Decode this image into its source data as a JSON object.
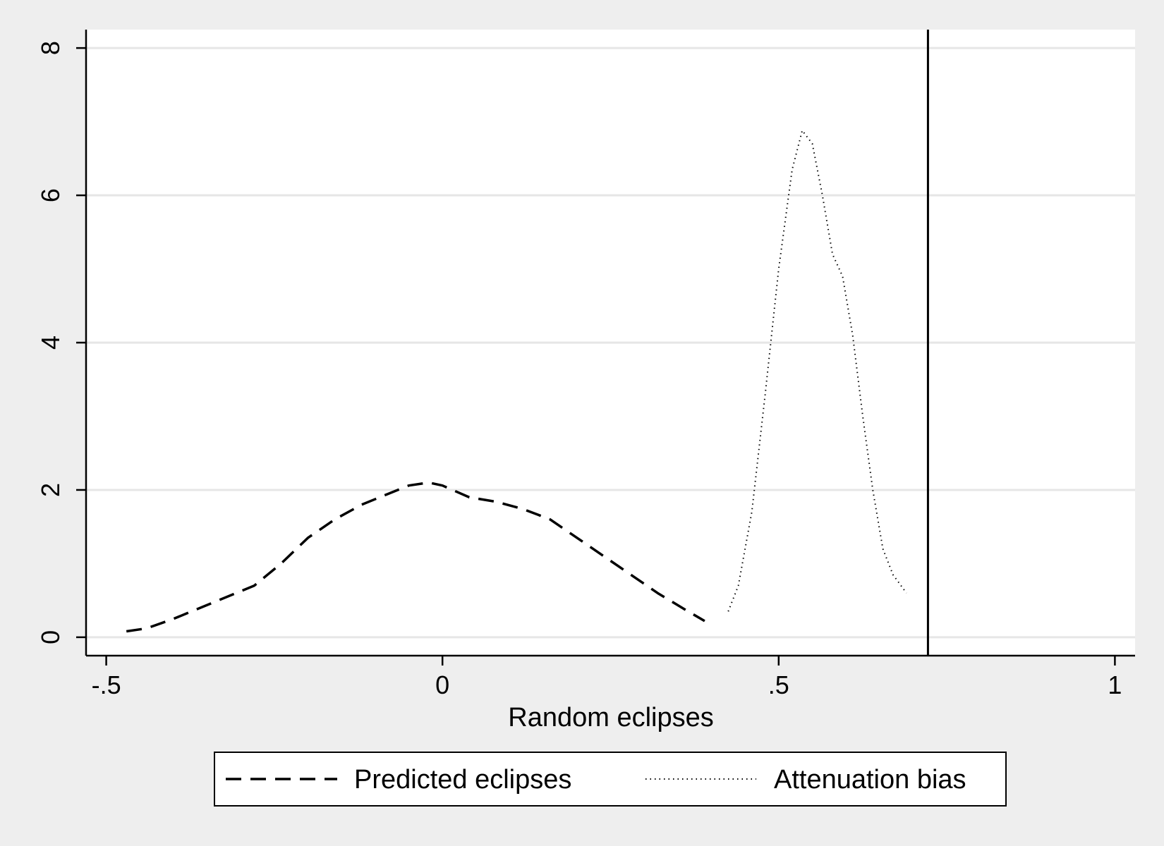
{
  "chart_data": {
    "type": "line",
    "xlabel": "Random eclipses",
    "ylabel": "",
    "xlim": [
      -0.53,
      1.03
    ],
    "ylim": [
      -0.25,
      8.25
    ],
    "x_ticks": [
      {
        "value": -0.5,
        "label": "-.5"
      },
      {
        "value": 0,
        "label": "0"
      },
      {
        "value": 0.5,
        "label": ".5"
      },
      {
        "value": 1,
        "label": "1"
      }
    ],
    "y_ticks": [
      {
        "value": 0,
        "label": "0"
      },
      {
        "value": 2,
        "label": "2"
      },
      {
        "value": 4,
        "label": "4"
      },
      {
        "value": 6,
        "label": "6"
      },
      {
        "value": 8,
        "label": "8"
      }
    ],
    "grid": "horizontal",
    "reference_line_x": 0.722,
    "series": [
      {
        "name": "Predicted eclipses",
        "style": "dashed",
        "color": "#000000",
        "points": [
          [
            -0.47,
            0.08
          ],
          [
            -0.44,
            0.12
          ],
          [
            -0.4,
            0.25
          ],
          [
            -0.36,
            0.4
          ],
          [
            -0.32,
            0.55
          ],
          [
            -0.28,
            0.7
          ],
          [
            -0.24,
            1.0
          ],
          [
            -0.2,
            1.35
          ],
          [
            -0.16,
            1.6
          ],
          [
            -0.12,
            1.8
          ],
          [
            -0.08,
            1.95
          ],
          [
            -0.05,
            2.06
          ],
          [
            -0.02,
            2.1
          ],
          [
            0.0,
            2.06
          ],
          [
            0.04,
            1.9
          ],
          [
            0.08,
            1.84
          ],
          [
            0.12,
            1.74
          ],
          [
            0.16,
            1.6
          ],
          [
            0.2,
            1.35
          ],
          [
            0.24,
            1.1
          ],
          [
            0.28,
            0.85
          ],
          [
            0.32,
            0.6
          ],
          [
            0.36,
            0.38
          ],
          [
            0.39,
            0.22
          ]
        ]
      },
      {
        "name": "Attenuation bias",
        "style": "dotted",
        "color": "#000000",
        "points": [
          [
            0.425,
            0.35
          ],
          [
            0.44,
            0.7
          ],
          [
            0.46,
            1.7
          ],
          [
            0.48,
            3.3
          ],
          [
            0.5,
            5.0
          ],
          [
            0.52,
            6.35
          ],
          [
            0.535,
            6.88
          ],
          [
            0.55,
            6.7
          ],
          [
            0.565,
            6.0
          ],
          [
            0.58,
            5.2
          ],
          [
            0.595,
            4.9
          ],
          [
            0.61,
            4.1
          ],
          [
            0.625,
            3.0
          ],
          [
            0.64,
            2.0
          ],
          [
            0.655,
            1.2
          ],
          [
            0.67,
            0.85
          ],
          [
            0.69,
            0.6
          ]
        ]
      }
    ]
  }
}
